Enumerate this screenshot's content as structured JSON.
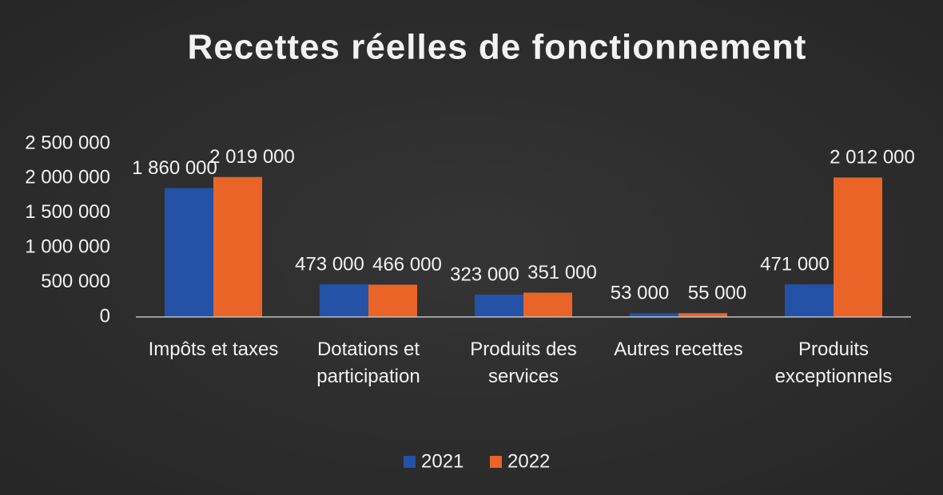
{
  "chart_data": {
    "type": "bar",
    "title": "Recettes réelles de fonctionnement",
    "categories": [
      "Impôts et taxes",
      "Dotations et participation",
      "Produits des services",
      "Autres recettes",
      "Produits exceptionnels"
    ],
    "series": [
      {
        "name": "2021",
        "color": "#2352a6",
        "values": [
          1860000,
          473000,
          323000,
          53000,
          471000
        ],
        "value_labels": [
          "1 860 000",
          "473 000",
          "323 000",
          "53 000",
          "471 000"
        ]
      },
      {
        "name": "2022",
        "color": "#ea6428",
        "values": [
          2019000,
          466000,
          351000,
          55000,
          2012000
        ],
        "value_labels": [
          "2 019 000",
          "466 000",
          "351 000",
          "55 000",
          "2 012 000"
        ]
      }
    ],
    "ylim": [
      0,
      2500000
    ],
    "yticks": [
      0,
      {
        "value": 500000,
        "label": "500 000"
      },
      {
        "value": 1000000,
        "label": "1 000 000"
      },
      {
        "value": 1500000,
        "label": "1 500 000"
      },
      {
        "value": 2000000,
        "label": "2 000 000"
      },
      {
        "value": 2500000,
        "label": "2 500 000"
      }
    ],
    "grid": false,
    "legend": "bottom"
  }
}
